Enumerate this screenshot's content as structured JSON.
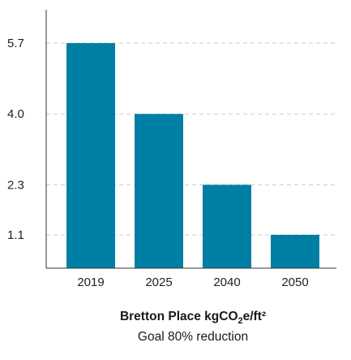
{
  "chart_data": {
    "type": "bar",
    "categories": [
      "2019",
      "2025",
      "2040",
      "2050"
    ],
    "values": [
      5.7,
      4.0,
      2.3,
      1.1
    ],
    "yticks": [
      "5.7",
      "4.0",
      "2.3",
      "1.1"
    ],
    "ylim": [
      0.3,
      6.5
    ],
    "grid": true,
    "bar_color": "#007fa4",
    "title": {
      "prefix": "Bretton Place kgCO",
      "subscript": "2",
      "suffix": "e/ft²"
    },
    "subtitle": "Goal 80% reduction",
    "xlabel": "",
    "ylabel": ""
  }
}
